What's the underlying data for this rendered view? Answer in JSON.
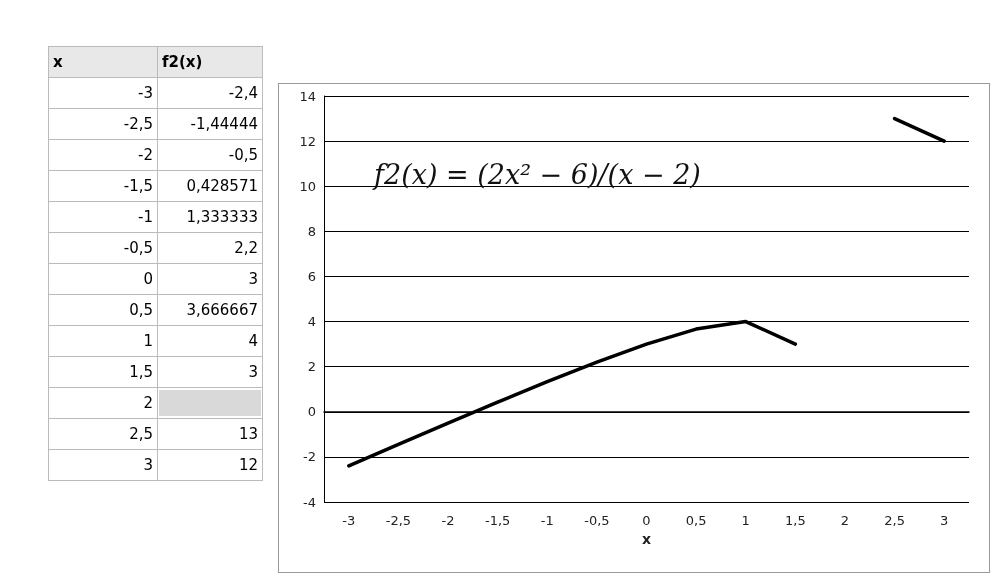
{
  "chart_data": {
    "type": "line",
    "title": "f2(x) = (2x² − 6)/(x − 2)",
    "xlabel": "x",
    "categories": [
      "-3",
      "-2,5",
      "-2",
      "-1,5",
      "-1",
      "-0,5",
      "0",
      "0,5",
      "1",
      "1,5",
      "2",
      "2,5",
      "3"
    ],
    "series": [
      {
        "color": "#000000",
        "values": [
          -2.4,
          -1.44444,
          -0.5,
          0.428571,
          1.333333,
          2.2,
          3,
          3.666667,
          4,
          3,
          null,
          13,
          12
        ]
      }
    ],
    "annotations": [
      "x",
      "-3",
      "-2,5",
      "-2",
      "-1,5",
      "-1",
      "-0,5",
      "0",
      "0,5",
      "1",
      "1,5",
      "2",
      "2,5",
      "3",
      "f2(x)",
      "-2,4",
      "-1,44444",
      "-0,5",
      "0,428571",
      "1,333333",
      "2,2",
      "3",
      "3,666667",
      "4",
      "3",
      "13",
      "12"
    ],
    "ylim": [
      -4,
      14
    ],
    "yticks": [
      -4,
      -2,
      0,
      2,
      4,
      6,
      8,
      10,
      12,
      14
    ],
    "grid": "y",
    "marker": "none",
    "line_style": "solid"
  }
}
